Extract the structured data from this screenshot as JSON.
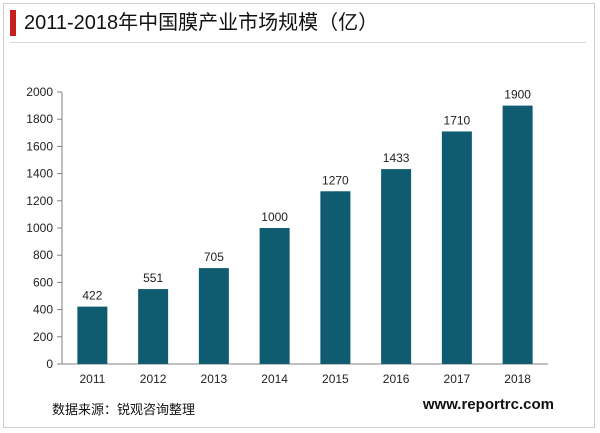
{
  "header": {
    "title": "2011-2018年中国膜产业市场规模（亿）"
  },
  "footer": {
    "source": "数据来源：锐观咨询整理",
    "website": "www.reportrc.com"
  },
  "colors": {
    "bar": "#0f5b6f",
    "accent": "#c81e1e",
    "axis": "#808080"
  },
  "chart_data": {
    "type": "bar",
    "title": "2011-2018年中国膜产业市场规模（亿）",
    "xlabel": "",
    "ylabel": "",
    "categories": [
      "2011",
      "2012",
      "2013",
      "2014",
      "2015",
      "2016",
      "2017",
      "2018"
    ],
    "values": [
      422,
      551,
      705,
      1000,
      1270,
      1433,
      1710,
      1900
    ],
    "data_labels": [
      "422",
      "551",
      "705",
      "1000",
      "1270",
      "1433",
      "1710",
      "1900"
    ],
    "ylim": [
      0,
      2000
    ],
    "yticks": [
      "0",
      "200",
      "400",
      "600",
      "800",
      "1000",
      "1200",
      "1400",
      "1600",
      "1800",
      "2000"
    ],
    "grid": false,
    "legend": "none"
  }
}
